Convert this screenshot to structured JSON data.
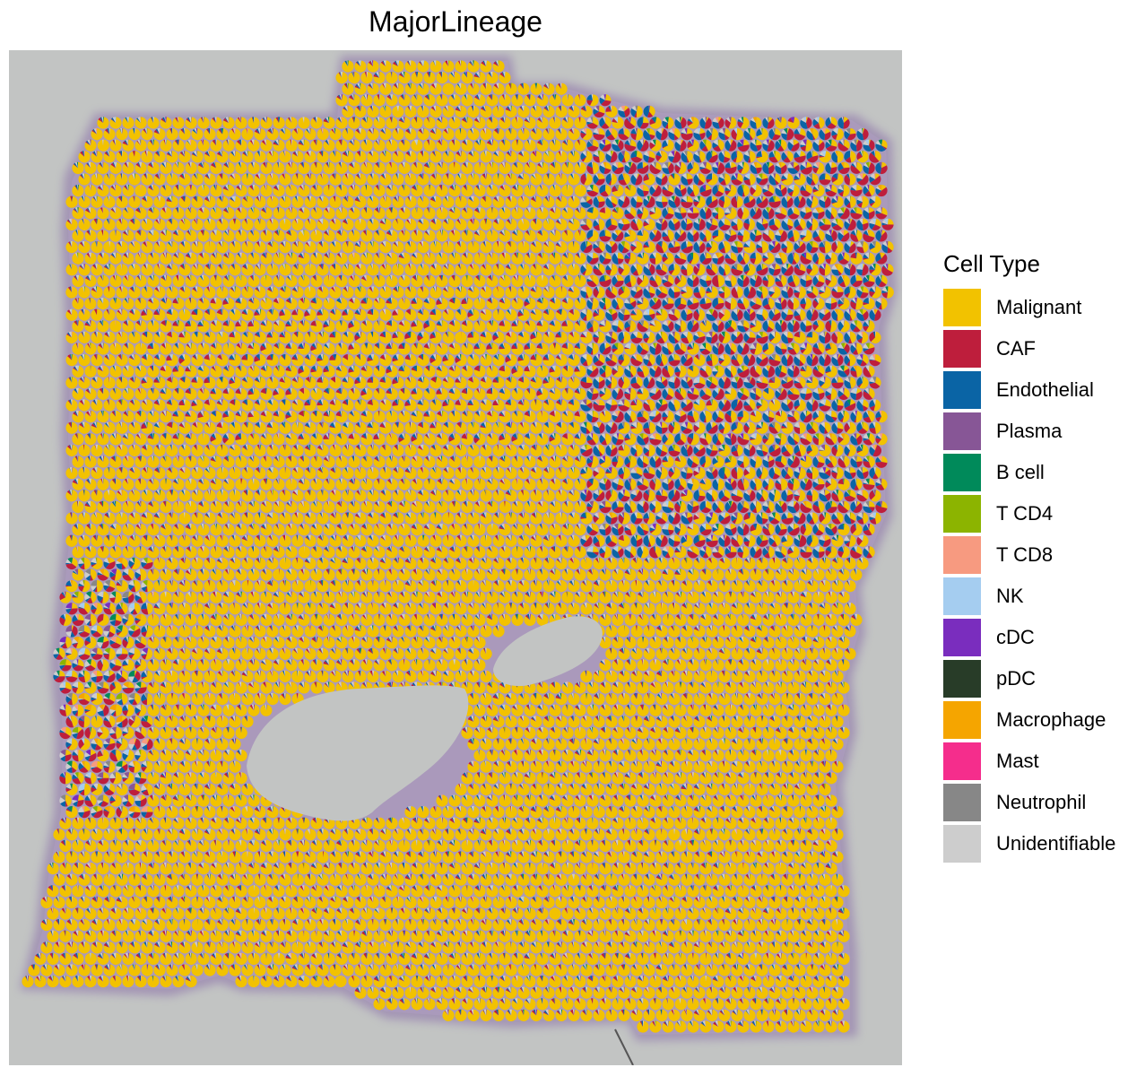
{
  "chart_data": {
    "type": "pie",
    "title": "MajorLineage",
    "legend": {
      "title": "Cell Type",
      "placement": "right",
      "entries": [
        {
          "name": "Malignant",
          "color": "#F2C200"
        },
        {
          "name": "CAF",
          "color": "#BE1E3C"
        },
        {
          "name": "Endothelial",
          "color": "#0A64A5"
        },
        {
          "name": "Plasma",
          "color": "#875696"
        },
        {
          "name": "B cell",
          "color": "#008A5A"
        },
        {
          "name": "T CD4",
          "color": "#8CB400"
        },
        {
          "name": "T CD8",
          "color": "#F79A80"
        },
        {
          "name": "NK",
          "color": "#A5CDF0"
        },
        {
          "name": "cDC",
          "color": "#7A2DBE"
        },
        {
          "name": "pDC",
          "color": "#283C28"
        },
        {
          "name": "Macrophage",
          "color": "#F5A500"
        },
        {
          "name": "Mast",
          "color": "#F52D8C"
        },
        {
          "name": "Neutrophil",
          "color": "#878787"
        },
        {
          "name": "Unidentifiable",
          "color": "#CDCDCD"
        }
      ]
    },
    "background": "tissue histology image",
    "xlabel": "",
    "ylabel": "",
    "grid": false
  }
}
